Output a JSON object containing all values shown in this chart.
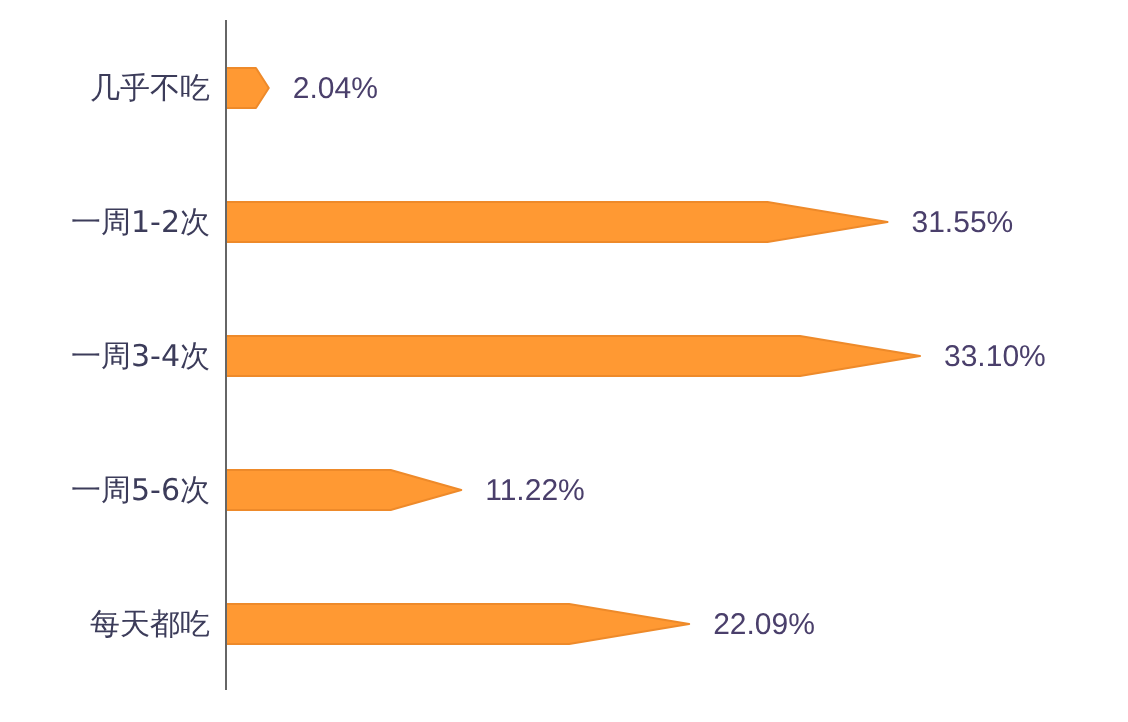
{
  "chart_data": {
    "type": "bar",
    "orientation": "horizontal",
    "categories": [
      "几乎不吃",
      "一周1-2次",
      "一周3-4次",
      "一周5-6次",
      "每天都吃"
    ],
    "values": [
      2.04,
      31.55,
      33.1,
      11.22,
      22.09
    ],
    "color": "#ff9933",
    "value_labels": [
      "2.04%",
      "31.55%",
      "33.10%",
      "11.22%",
      "22.09%"
    ],
    "grid": false,
    "legend": false
  }
}
